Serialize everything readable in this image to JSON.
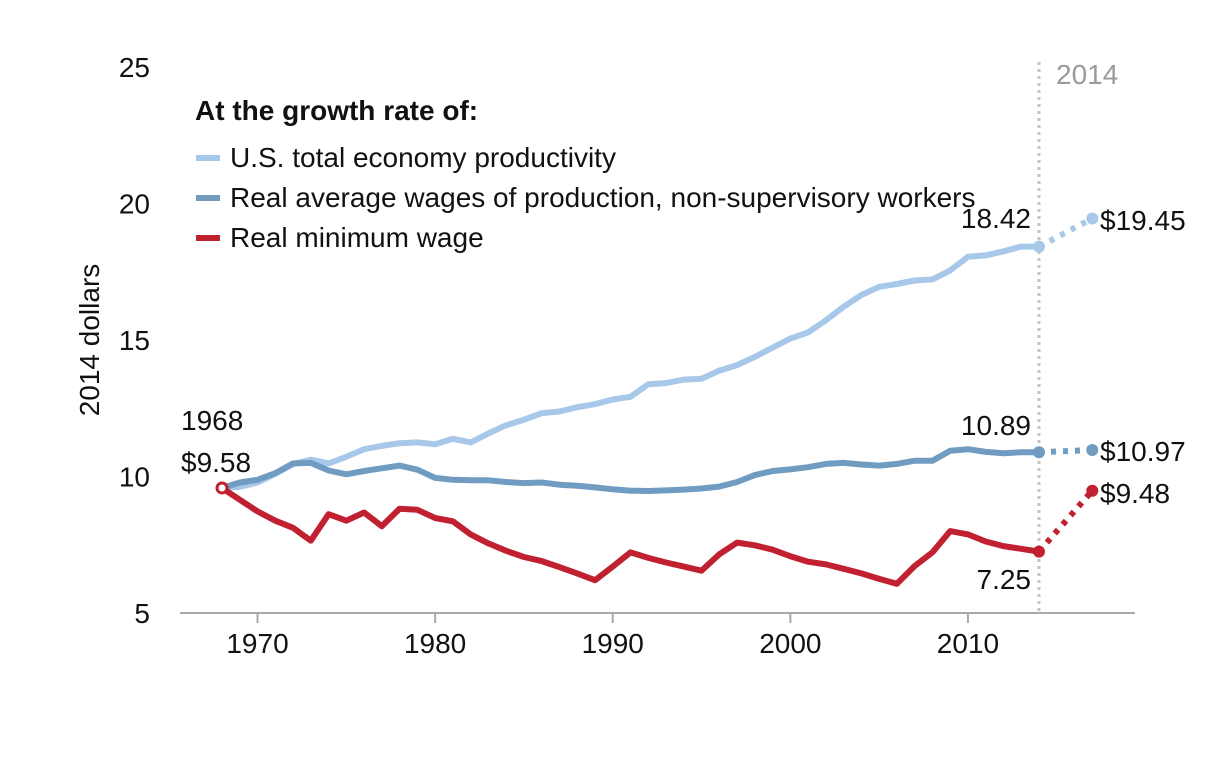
{
  "chart_data": {
    "type": "line",
    "ylabel": "2014 dollars",
    "ylim": [
      5,
      25
    ],
    "yticks": [
      5,
      10,
      15,
      20,
      25
    ],
    "xlim": [
      1964,
      2020
    ],
    "xticks": [
      1970,
      1980,
      1990,
      2000,
      2010
    ],
    "marker_year": 2014,
    "marker_label": "2014",
    "legend_title": "At the growth rate of:",
    "legend_position": "top-left",
    "series": [
      {
        "name": "U.S. total economy productivity",
        "color": "#a8c8ea",
        "x": [
          1968,
          1969,
          1970,
          1971,
          1972,
          1973,
          1974,
          1975,
          1976,
          1977,
          1978,
          1979,
          1980,
          1981,
          1982,
          1983,
          1984,
          1985,
          1986,
          1987,
          1988,
          1989,
          1990,
          1991,
          1992,
          1993,
          1994,
          1995,
          1996,
          1997,
          1998,
          1999,
          2000,
          2001,
          2002,
          2003,
          2004,
          2005,
          2006,
          2007,
          2008,
          2009,
          2010,
          2011,
          2012,
          2013,
          2014
        ],
        "values": [
          9.58,
          9.62,
          9.78,
          10.1,
          10.45,
          10.62,
          10.48,
          10.72,
          11.0,
          11.12,
          11.22,
          11.25,
          11.18,
          11.38,
          11.25,
          11.58,
          11.88,
          12.08,
          12.32,
          12.38,
          12.54,
          12.65,
          12.82,
          12.92,
          13.38,
          13.42,
          13.55,
          13.58,
          13.88,
          14.08,
          14.38,
          14.72,
          15.05,
          15.28,
          15.72,
          16.22,
          16.65,
          16.95,
          17.05,
          17.18,
          17.22,
          17.55,
          18.05,
          18.1,
          18.25,
          18.42,
          18.42
        ],
        "projection": {
          "x": [
            2014,
            2017
          ],
          "values": [
            18.42,
            19.45
          ]
        },
        "end_label": "18.42",
        "projected_label": "$19.45"
      },
      {
        "name": "Real average wages of production, non-supervisory workers",
        "color": "#6f9cc0",
        "x": [
          1968,
          1969,
          1970,
          1971,
          1972,
          1973,
          1974,
          1975,
          1976,
          1977,
          1978,
          1979,
          1980,
          1981,
          1982,
          1983,
          1984,
          1985,
          1986,
          1987,
          1988,
          1989,
          1990,
          1991,
          1992,
          1993,
          1994,
          1995,
          1996,
          1997,
          1998,
          1999,
          2000,
          2001,
          2002,
          2003,
          2004,
          2005,
          2006,
          2007,
          2008,
          2009,
          2010,
          2011,
          2012,
          2013,
          2014
        ],
        "values": [
          9.58,
          9.78,
          9.88,
          10.12,
          10.48,
          10.5,
          10.22,
          10.08,
          10.2,
          10.3,
          10.4,
          10.25,
          9.95,
          9.88,
          9.86,
          9.86,
          9.8,
          9.76,
          9.78,
          9.7,
          9.66,
          9.6,
          9.53,
          9.48,
          9.47,
          9.49,
          9.52,
          9.56,
          9.63,
          9.8,
          10.05,
          10.2,
          10.26,
          10.34,
          10.46,
          10.5,
          10.44,
          10.4,
          10.46,
          10.58,
          10.58,
          10.94,
          11.0,
          10.9,
          10.85,
          10.89,
          10.89
        ],
        "projection": {
          "x": [
            2014,
            2017
          ],
          "values": [
            10.89,
            10.97
          ]
        },
        "end_label": "10.89",
        "projected_label": "$10.97"
      },
      {
        "name": "Real minimum wage",
        "color": "#c0202f",
        "x": [
          1968,
          1969,
          1970,
          1971,
          1972,
          1973,
          1974,
          1975,
          1976,
          1977,
          1978,
          1979,
          1980,
          1981,
          1982,
          1983,
          1984,
          1985,
          1986,
          1987,
          1988,
          1989,
          1990,
          1991,
          1992,
          1993,
          1994,
          1995,
          1996,
          1997,
          1998,
          1999,
          2000,
          2001,
          2002,
          2003,
          2004,
          2005,
          2006,
          2007,
          2008,
          2009,
          2010,
          2011,
          2012,
          2013,
          2014
        ],
        "values": [
          9.58,
          9.15,
          8.72,
          8.38,
          8.12,
          7.65,
          8.62,
          8.38,
          8.68,
          8.18,
          8.82,
          8.78,
          8.48,
          8.36,
          7.88,
          7.55,
          7.28,
          7.05,
          6.9,
          6.68,
          6.45,
          6.2,
          6.7,
          7.22,
          7.02,
          6.85,
          6.7,
          6.55,
          7.15,
          7.58,
          7.48,
          7.32,
          7.08,
          6.88,
          6.78,
          6.62,
          6.45,
          6.25,
          6.07,
          6.72,
          7.22,
          8.0,
          7.88,
          7.62,
          7.45,
          7.35,
          7.25
        ],
        "projection": {
          "x": [
            2014,
            2017
          ],
          "values": [
            7.25,
            9.48
          ]
        },
        "end_label": "7.25",
        "projected_label": "$9.48"
      }
    ],
    "start_year_label": "1968",
    "start_value_label": "$9.58"
  }
}
